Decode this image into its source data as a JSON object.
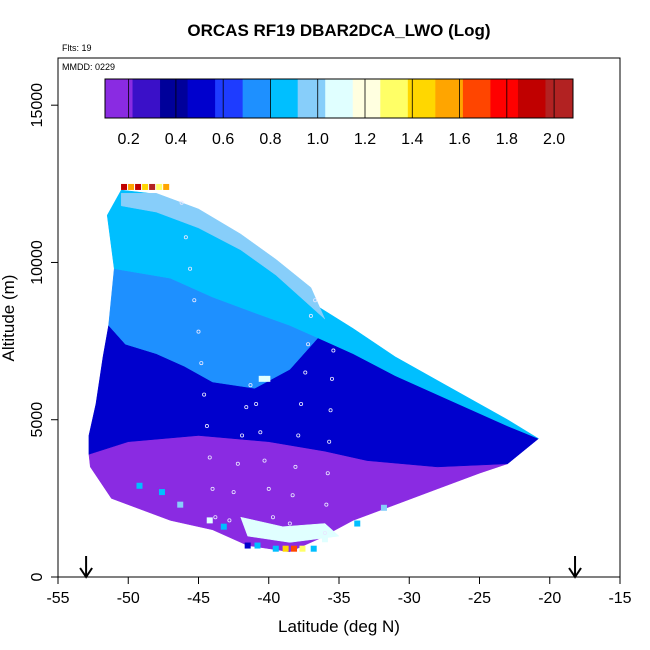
{
  "chart_data": {
    "type": "heatmap",
    "title": "ORCAS RF19 DBAR2DCA_LWO (Log)",
    "annotations": {
      "flights": "Flts: 19",
      "date": "MMDD: 0229"
    },
    "xlabel": "Latitude (deg N)",
    "ylabel": "Altitude (m)",
    "xlim": [
      -55,
      -15
    ],
    "ylim": [
      0,
      16500
    ],
    "x_ticks": [
      "-55",
      "-50",
      "-45",
      "-40",
      "-35",
      "-30",
      "-25",
      "-20",
      "-15"
    ],
    "x_tick_values": [
      -55,
      -50,
      -45,
      -40,
      -35,
      -30,
      -25,
      -20,
      -15
    ],
    "y_ticks": [
      "0",
      "5000",
      "10000",
      "15000"
    ],
    "y_tick_values": [
      0,
      5000,
      10000,
      15000
    ],
    "colorbar": {
      "range": [
        0.1,
        2.08
      ],
      "tick_labels": [
        "0.2",
        "0.4",
        "0.6",
        "0.8",
        "1.0",
        "1.2",
        "1.4",
        "1.6",
        "1.8",
        "2.0"
      ],
      "tick_values": [
        0.2,
        0.4,
        0.6,
        0.8,
        1.0,
        1.2,
        1.4,
        1.6,
        1.8,
        2.0
      ],
      "colors": [
        "#8a2be2",
        "#3a10c8",
        "#00009a",
        "#0000cd",
        "#1e3cff",
        "#1e90ff",
        "#00bfff",
        "#87cefa",
        "#e0ffff",
        "#ffffe0",
        "#ffff66",
        "#ffd700",
        "#ffa500",
        "#ff4500",
        "#ff0000",
        "#c00000",
        "#b22222"
      ]
    },
    "field_regions": [
      {
        "name": "lower",
        "value": 0.15,
        "polygon": [
          [
            -52.7,
            3500
          ],
          [
            -51.2,
            2500
          ],
          [
            -47,
            1800
          ],
          [
            -44,
            1500
          ],
          [
            -41.5,
            1000
          ],
          [
            -38.5,
            800
          ],
          [
            -36.5,
            1200
          ],
          [
            -34,
            1800
          ],
          [
            -31,
            2300
          ],
          [
            -28,
            2800
          ],
          [
            -25,
            3300
          ],
          [
            -23,
            3600
          ],
          [
            -28,
            3500
          ],
          [
            -33,
            3700
          ],
          [
            -36,
            4000
          ],
          [
            -40,
            4300
          ],
          [
            -45,
            4500
          ],
          [
            -50,
            4300
          ],
          [
            -52.8,
            3900
          ]
        ]
      },
      {
        "name": "middle",
        "value": 0.45,
        "polygon": [
          [
            -52.8,
            3900
          ],
          [
            -50,
            4300
          ],
          [
            -45,
            4500
          ],
          [
            -40,
            4300
          ],
          [
            -36,
            4000
          ],
          [
            -33,
            3700
          ],
          [
            -28,
            3500
          ],
          [
            -23,
            3600
          ],
          [
            -20.8,
            4400
          ],
          [
            -23,
            4800
          ],
          [
            -27,
            5600
          ],
          [
            -31,
            6400
          ],
          [
            -34,
            7100
          ],
          [
            -35.5,
            7400
          ],
          [
            -36.5,
            7600
          ],
          [
            -38.5,
            6600
          ],
          [
            -41,
            6000
          ],
          [
            -44,
            6200
          ],
          [
            -46,
            6700
          ],
          [
            -48,
            7100
          ],
          [
            -50.2,
            7400
          ],
          [
            -51.4,
            8000
          ],
          [
            -51.8,
            7000
          ],
          [
            -52.3,
            5500
          ],
          [
            -52.8,
            4500
          ]
        ]
      },
      {
        "name": "middle-upper",
        "value": 0.7,
        "polygon": [
          [
            -51.4,
            8000
          ],
          [
            -50.2,
            7400
          ],
          [
            -48,
            7100
          ],
          [
            -46,
            6700
          ],
          [
            -44,
            6200
          ],
          [
            -41,
            6000
          ],
          [
            -38.5,
            6600
          ],
          [
            -36.5,
            7600
          ],
          [
            -38.5,
            8000
          ],
          [
            -41,
            8400
          ],
          [
            -44,
            8900
          ],
          [
            -47,
            9500
          ],
          [
            -51,
            9800
          ]
        ]
      },
      {
        "name": "upper",
        "value": 0.82,
        "polygon": [
          [
            -51,
            9800
          ],
          [
            -47,
            9500
          ],
          [
            -44,
            8900
          ],
          [
            -41,
            8400
          ],
          [
            -38.5,
            8000
          ],
          [
            -36.5,
            7600
          ],
          [
            -35.5,
            7400
          ],
          [
            -34,
            7100
          ],
          [
            -31,
            6400
          ],
          [
            -27,
            5600
          ],
          [
            -23,
            4800
          ],
          [
            -20.8,
            4400
          ],
          [
            -23,
            5000
          ],
          [
            -27,
            6000
          ],
          [
            -31,
            7000
          ],
          [
            -34,
            7900
          ],
          [
            -36.5,
            8600
          ],
          [
            -39,
            9500
          ],
          [
            -41.5,
            10300
          ],
          [
            -44,
            11000
          ],
          [
            -46.5,
            11800
          ],
          [
            -48.5,
            12200
          ],
          [
            -50.5,
            12300
          ],
          [
            -51.5,
            11500
          ]
        ]
      },
      {
        "name": "upper-band",
        "value": 1.02,
        "polygon": [
          [
            -50.5,
            11800
          ],
          [
            -48,
            11600
          ],
          [
            -45,
            11100
          ],
          [
            -42,
            10400
          ],
          [
            -39.5,
            9600
          ],
          [
            -37.5,
            8800
          ],
          [
            -36,
            8200
          ],
          [
            -37,
            9200
          ],
          [
            -39.5,
            10100
          ],
          [
            -42,
            10900
          ],
          [
            -45,
            11700
          ],
          [
            -48,
            12200
          ],
          [
            -50.5,
            12200
          ]
        ]
      },
      {
        "name": "low-cloud",
        "value": 1.05,
        "polygon": [
          [
            -42,
            1900
          ],
          [
            -39,
            1600
          ],
          [
            -36,
            1700
          ],
          [
            -35,
            1300
          ],
          [
            -38.5,
            1100
          ],
          [
            -41.5,
            1300
          ]
        ]
      }
    ],
    "cells": [
      {
        "lat": -50.3,
        "alt": 12400,
        "value": 1.95
      },
      {
        "lat": -49.8,
        "alt": 12400,
        "value": 1.5
      },
      {
        "lat": -49.3,
        "alt": 12400,
        "value": 1.85
      },
      {
        "lat": -48.8,
        "alt": 12400,
        "value": 1.4
      },
      {
        "lat": -48.3,
        "alt": 12400,
        "value": 2.0
      },
      {
        "lat": -47.8,
        "alt": 12400,
        "value": 1.3
      },
      {
        "lat": -47.3,
        "alt": 12400,
        "value": 1.6
      },
      {
        "lat": -39.5,
        "alt": 900,
        "value": 0.8
      },
      {
        "lat": -38.8,
        "alt": 900,
        "value": 1.4
      },
      {
        "lat": -38.2,
        "alt": 900,
        "value": 1.65
      },
      {
        "lat": -37.6,
        "alt": 900,
        "value": 1.3
      },
      {
        "lat": -36.8,
        "alt": 900,
        "value": 0.9
      },
      {
        "lat": -41.5,
        "alt": 1000,
        "value": 0.5
      },
      {
        "lat": -40.8,
        "alt": 1000,
        "value": 0.9
      },
      {
        "lat": -36.0,
        "alt": 1200,
        "value": 1.05
      },
      {
        "lat": -44.2,
        "alt": 1800,
        "value": 1.05
      },
      {
        "lat": -43.2,
        "alt": 1600,
        "value": 0.9
      },
      {
        "lat": -33.7,
        "alt": 1700,
        "value": 0.9
      },
      {
        "lat": -31.8,
        "alt": 2200,
        "value": 0.95
      },
      {
        "lat": -46.3,
        "alt": 2300,
        "value": 1.0
      },
      {
        "lat": -47.6,
        "alt": 2700,
        "value": 0.9
      },
      {
        "lat": -49.2,
        "alt": 2900,
        "value": 0.8
      },
      {
        "lat": -40.5,
        "alt": 6300,
        "value": 1.1
      },
      {
        "lat": -40.1,
        "alt": 6300,
        "value": 1.1
      }
    ],
    "flight_tracks": [
      [
        [
          -46.2,
          11900
        ],
        [
          -45.9,
          10800
        ],
        [
          -45.6,
          9800
        ],
        [
          -45.3,
          8800
        ],
        [
          -45.0,
          7800
        ],
        [
          -44.8,
          6800
        ],
        [
          -44.6,
          5800
        ],
        [
          -44.4,
          4800
        ],
        [
          -44.2,
          3800
        ],
        [
          -44.0,
          2800
        ],
        [
          -43.8,
          1900
        ]
      ],
      [
        [
          -42.8,
          1800
        ],
        [
          -42.5,
          2700
        ],
        [
          -42.2,
          3600
        ],
        [
          -41.9,
          4500
        ],
        [
          -41.6,
          5400
        ],
        [
          -41.3,
          6100
        ],
        [
          -40.9,
          5500
        ],
        [
          -40.6,
          4600
        ],
        [
          -40.3,
          3700
        ],
        [
          -40.0,
          2800
        ],
        [
          -39.7,
          1900
        ]
      ],
      [
        [
          -38.5,
          1700
        ],
        [
          -38.3,
          2600
        ],
        [
          -38.1,
          3500
        ],
        [
          -37.9,
          4500
        ],
        [
          -37.7,
          5500
        ],
        [
          -37.4,
          6500
        ],
        [
          -37.2,
          7400
        ],
        [
          -37.0,
          8300
        ],
        [
          -36.7,
          8800
        ]
      ],
      [
        [
          -35.4,
          7200
        ],
        [
          -35.5,
          6300
        ],
        [
          -35.6,
          5300
        ],
        [
          -35.7,
          4300
        ],
        [
          -35.8,
          3300
        ],
        [
          -35.9,
          2300
        ],
        [
          -36.0,
          1400
        ]
      ]
    ],
    "arrows": [
      -53.0,
      -18.2
    ]
  }
}
